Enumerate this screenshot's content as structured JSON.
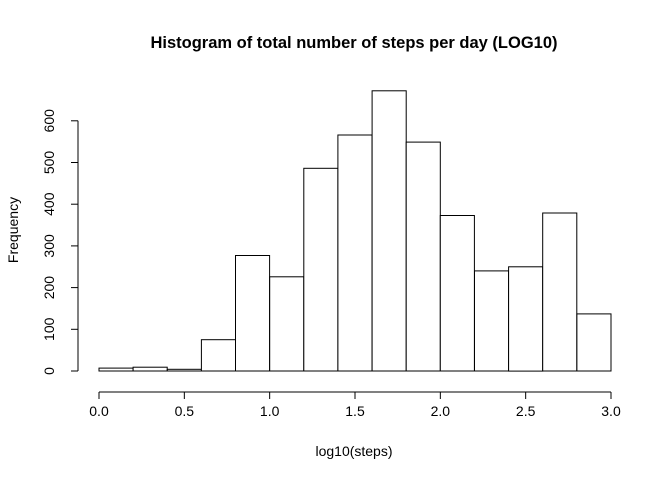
{
  "chart_data": {
    "type": "bar",
    "title": "Histogram of total number of steps per day (LOG10)",
    "xlabel": "log10(steps)",
    "ylabel": "Frequency",
    "xlim": [
      0.0,
      3.0
    ],
    "ylim": [
      0,
      700
    ],
    "bins": [
      {
        "x0": 0.0,
        "x1": 0.2,
        "count": 7
      },
      {
        "x0": 0.2,
        "x1": 0.4,
        "count": 9
      },
      {
        "x0": 0.4,
        "x1": 0.6,
        "count": 4
      },
      {
        "x0": 0.6,
        "x1": 0.8,
        "count": 75
      },
      {
        "x0": 0.8,
        "x1": 1.0,
        "count": 277
      },
      {
        "x0": 1.0,
        "x1": 1.2,
        "count": 226
      },
      {
        "x0": 1.2,
        "x1": 1.4,
        "count": 486
      },
      {
        "x0": 1.4,
        "x1": 1.6,
        "count": 566
      },
      {
        "x0": 1.6,
        "x1": 1.8,
        "count": 672
      },
      {
        "x0": 1.8,
        "x1": 2.0,
        "count": 549
      },
      {
        "x0": 2.0,
        "x1": 2.2,
        "count": 373
      },
      {
        "x0": 2.2,
        "x1": 2.4,
        "count": 240
      },
      {
        "x0": 2.4,
        "x1": 2.6,
        "count": 250
      },
      {
        "x0": 2.6,
        "x1": 2.8,
        "count": 379
      },
      {
        "x0": 2.8,
        "x1": 3.0,
        "count": 137
      }
    ],
    "x_ticks": [
      "0.0",
      "0.5",
      "1.0",
      "1.5",
      "2.0",
      "2.5",
      "3.0"
    ],
    "y_ticks": [
      "0",
      "100",
      "200",
      "300",
      "400",
      "500",
      "600"
    ],
    "grid": false,
    "legend": "none"
  }
}
